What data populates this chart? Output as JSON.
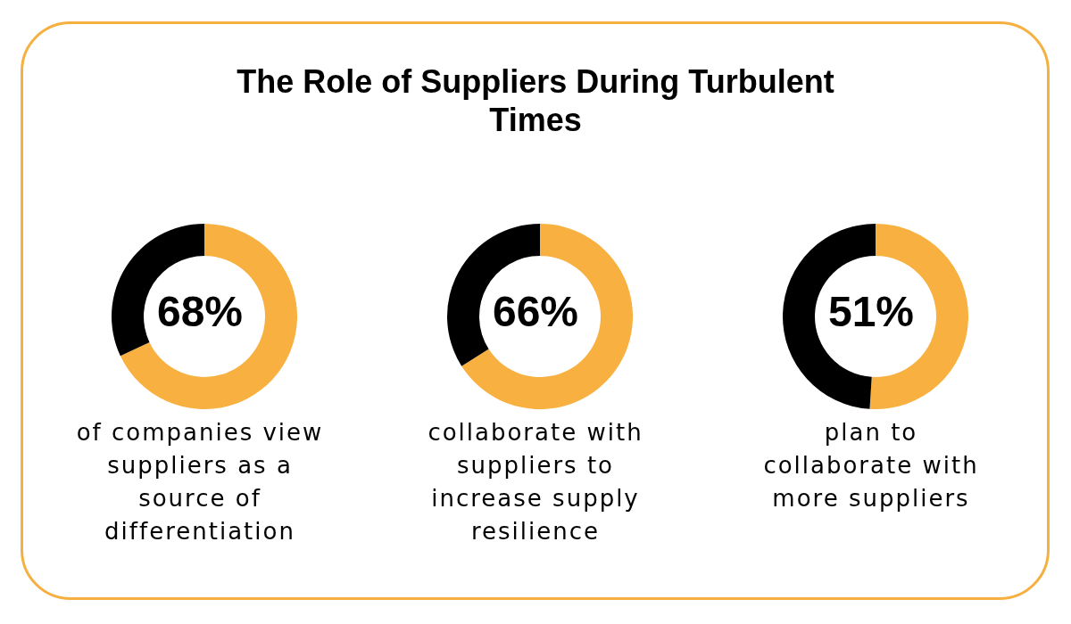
{
  "chart_data": [
    {
      "type": "other",
      "title": "The Role of Suppliers During Turbulent Times"
    },
    {
      "type": "donut",
      "categories": [
        null,
        null
      ],
      "values": [
        68,
        32
      ],
      "colors": [
        "#f8b040",
        "#000000"
      ],
      "annotations": [
        "68%",
        "of companies view suppliers as a source of differentiation"
      ]
    },
    {
      "type": "donut",
      "categories": [
        null,
        null
      ],
      "values": [
        66,
        34
      ],
      "colors": [
        "#f8b040",
        "#000000"
      ],
      "annotations": [
        "66%",
        "collaborate with suppliers to increase supply resilience"
      ]
    },
    {
      "type": "donut",
      "categories": [
        null,
        null
      ],
      "values": [
        51,
        49
      ],
      "colors": [
        "#f8b040",
        "#000000"
      ],
      "annotations": [
        "51%",
        "plan to collaborate with more suppliers"
      ]
    }
  ]
}
